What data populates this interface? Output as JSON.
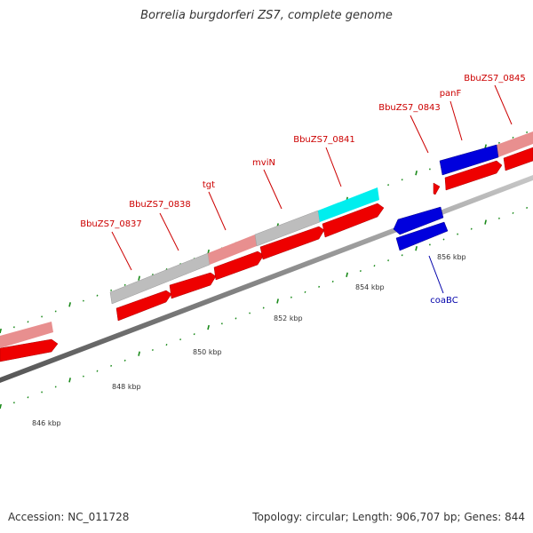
{
  "title": "Borrelia burgdorferi ZS7, complete genome",
  "footer": {
    "accession": "Accession: NC_011728",
    "summary": "Topology: circular; Length: 906,707 bp; Genes: 844"
  },
  "scale_labels": [
    "846 kbp",
    "848 kbp",
    "850 kbp",
    "852 kbp",
    "854 kbp",
    "856 kbp"
  ],
  "gene_labels": [
    "BbuZS7_0837",
    "BbuZS7_0838",
    "tgt",
    "mviN",
    "BbuZS7_0841",
    "BbuZS7_0843",
    "panF",
    "BbuZS7_0845",
    "coaBC"
  ],
  "colors": {
    "forward_cds": "#ff0000",
    "forward_label": "#cc0000",
    "reverse_cds": "#0000dd",
    "reverse_label": "#0000aa",
    "gene_pink": "#e88f8f",
    "gene_gray": "#bdbdbd",
    "gene_cyan": "#00eeee",
    "backbone": "#777777",
    "tick": "#1a8a1a"
  }
}
